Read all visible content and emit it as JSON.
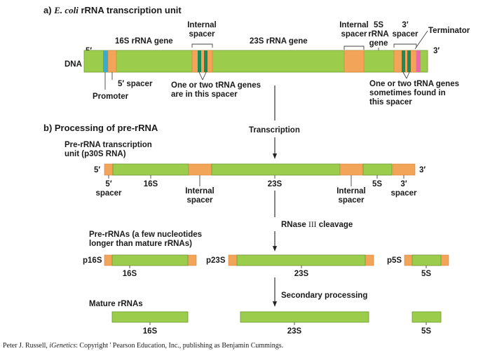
{
  "section_a": {
    "title_prefix": "a)",
    "title_italic": "E. coli",
    "title_rest": "rRNA transcription unit",
    "gene_16s": "16S rRNA gene",
    "gene_23s": "23S rRNA gene",
    "internal_spacer_1": [
      "Internal",
      "spacer"
    ],
    "internal_spacer_2": [
      "Internal",
      "spacer"
    ],
    "gene_5s": [
      "5S",
      "rRNA",
      "gene"
    ],
    "spacer_3": [
      "3′",
      "spacer"
    ],
    "terminator": "Terminator",
    "five_prime": "5′",
    "three_prime": "3′",
    "dna": "DNA",
    "spacer_5": "5′ spacer",
    "promoter": "Promoter",
    "trna_note_1": [
      "One or two tRNA genes",
      "are in this spacer"
    ],
    "trna_note_2": [
      "One or two tRNA genes",
      "sometimes found in",
      "this spacer"
    ]
  },
  "section_b": {
    "title": "b) Processing of pre-rRNA",
    "transcription": "Transcription",
    "pre_rrna_unit": [
      "Pre-rRNA transcription",
      "unit (p30S RNA)"
    ],
    "five_prime": "5′",
    "three_prime": "3′",
    "spacer_5": [
      "5′",
      "spacer"
    ],
    "label_16s": "16S",
    "internal_spacer_1": [
      "Internal",
      "spacer"
    ],
    "label_23s": "23S",
    "internal_spacer_2": [
      "Internal",
      "spacer"
    ],
    "label_5s": "5S",
    "spacer_3": [
      "3′",
      "spacer"
    ],
    "rnase_prefix": "RNase",
    "rnase_serif": "III",
    "rnase_suffix": "cleavage",
    "pre_rrnas": [
      "Pre-rRNAs (a few nucleotides",
      "longer than mature rRNAs)"
    ],
    "p16s": "p16S",
    "p23s": "p23S",
    "p5s": "p5S",
    "pre_16s": "16S",
    "pre_23s": "23S",
    "pre_5s": "5S",
    "secondary": "Secondary processing",
    "mature": "Mature rRNAs",
    "mat_16s": "16S",
    "mat_23s": "23S",
    "mat_5s": "5S"
  },
  "credit": {
    "part1": "Peter J. Russell, ",
    "italic": "iGenetics",
    "part2": ": Copyright ' Pearson Education, Inc., publishing as Benjamin Cummings."
  },
  "colors": {
    "rrna_gene": "#9ccc4c",
    "spacer": "#f2a458",
    "trna_gene": "#1e8a5a",
    "promoter": "#3fa9c9",
    "terminator": "#e86aa8"
  }
}
